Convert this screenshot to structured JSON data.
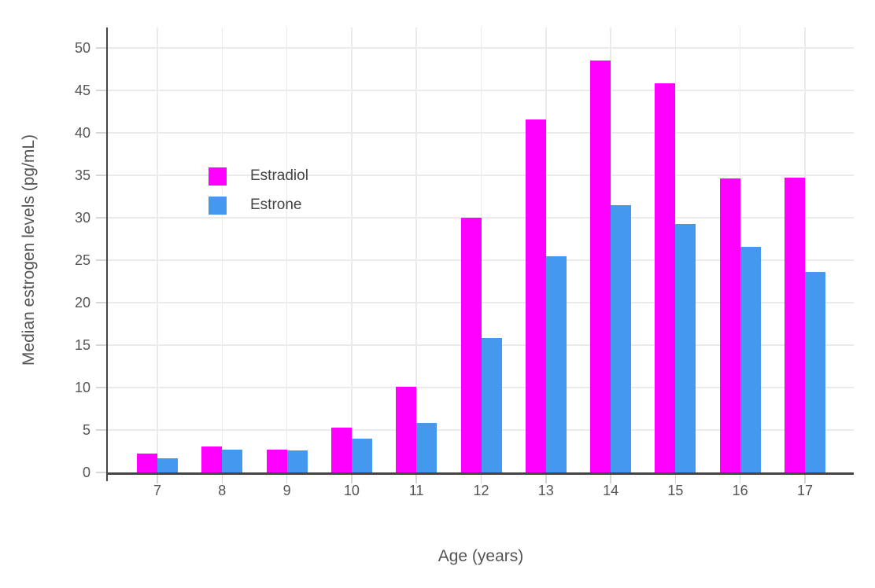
{
  "chart_data": {
    "type": "bar",
    "title": "",
    "xlabel": "Age (years)",
    "ylabel": "Median estrogen levels (pg/mL)",
    "categories": [
      "7",
      "8",
      "9",
      "10",
      "11",
      "12",
      "13",
      "14",
      "15",
      "16",
      "17"
    ],
    "series": [
      {
        "name": "Estradiol",
        "color": "#FF00FF",
        "values": [
          2.2,
          3.1,
          2.7,
          5.3,
          10.1,
          30,
          41.6,
          48.5,
          45.8,
          34.6,
          34.7
        ]
      },
      {
        "name": "Estrone",
        "color": "#4499EE",
        "values": [
          1.7,
          2.7,
          2.6,
          4,
          5.8,
          15.8,
          25.5,
          31.5,
          29.3,
          26.6,
          23.6
        ]
      }
    ],
    "ylim": [
      0,
      52.5
    ],
    "yticks": [
      0,
      5,
      10,
      15,
      20,
      25,
      30,
      35,
      40,
      45,
      50
    ],
    "grid": true,
    "legend_position": "inside-upper-left",
    "colors": {
      "background": "#FFFFFF",
      "axis_line": "#444444",
      "gridline": "#EBEBEB",
      "tick_mark": "#D6D6D6",
      "tick_label": "#555555",
      "axis_title": "#555555",
      "legend_text": "#444444"
    }
  }
}
